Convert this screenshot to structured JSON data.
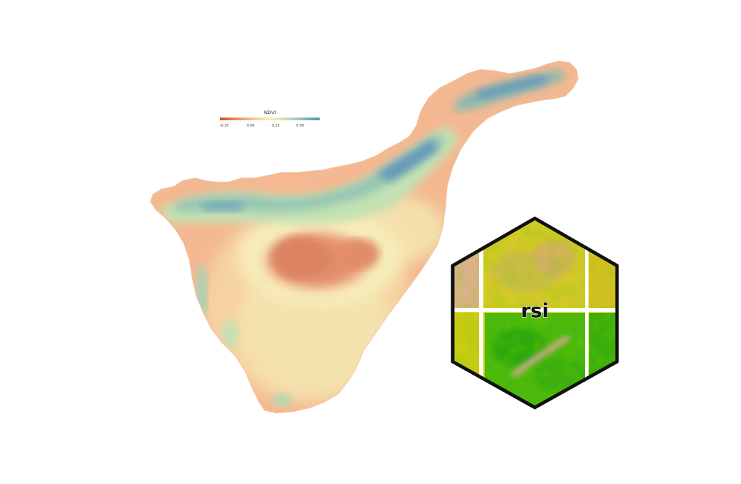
{
  "legend": {
    "title": "NDVI",
    "ticks": [
      "-0.25",
      "0.00",
      "0.25",
      "0.50"
    ],
    "colors": [
      "#d7432e",
      "#f08a5d",
      "#f5c48e",
      "#f6f0b3",
      "#bfe1b1",
      "#88bdb0",
      "#4e8fb8"
    ]
  },
  "map": {
    "palette": {
      "coast_low": "#f2a87f",
      "mid": "#f5cf9a",
      "pale": "#f4edb6",
      "green": "#b8dcab",
      "teal": "#7fb5aa",
      "blue": "#5a92b5",
      "crater": "#e58d68",
      "crater_dark": "#d97a57"
    }
  },
  "hex_logo": {
    "text": "rsi",
    "colors": {
      "border": "#111111",
      "yellow": "#d9d40f",
      "green": "#4ab80c",
      "bright_green": "#2fa90a",
      "tan": "#dbb287",
      "pink": "#d9a79a",
      "line": "#ffffff"
    }
  }
}
